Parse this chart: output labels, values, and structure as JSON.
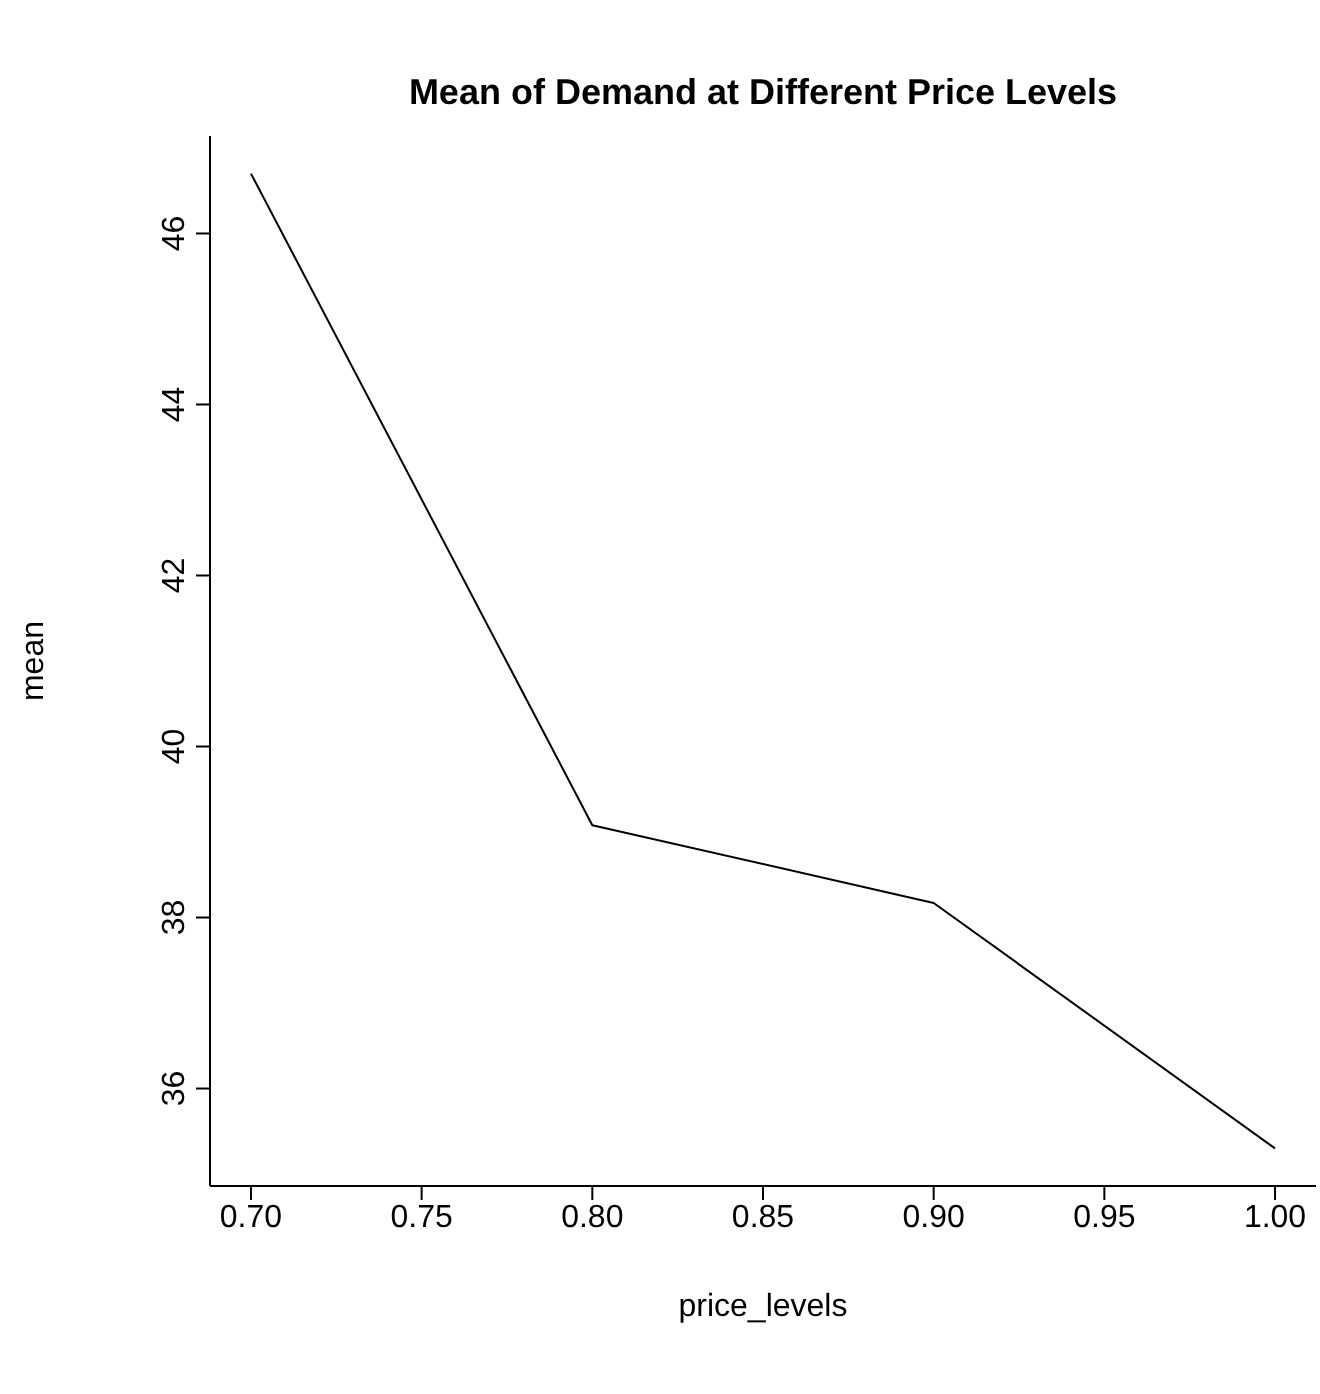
{
  "chart_data": {
    "type": "line",
    "title": "Mean of Demand at Different Price Levels",
    "xlabel": "price_levels",
    "ylabel": "mean",
    "x": [
      0.7,
      0.8,
      0.9,
      1.0
    ],
    "series": [
      {
        "color": "#000000",
        "values": [
          46.7,
          39.08,
          38.17,
          35.3
        ]
      }
    ],
    "xlim": [
      0.688,
      1.012
    ],
    "ylim": [
      34.86,
      47.14
    ],
    "xticks": [
      {
        "value": 0.7,
        "label": "0.70"
      },
      {
        "value": 0.75,
        "label": "0.75"
      },
      {
        "value": 0.8,
        "label": "0.80"
      },
      {
        "value": 0.85,
        "label": "0.85"
      },
      {
        "value": 0.9,
        "label": "0.90"
      },
      {
        "value": 0.95,
        "label": "0.95"
      },
      {
        "value": 1.0,
        "label": "1.00"
      }
    ],
    "yticks": [
      36,
      38,
      40,
      42,
      44,
      46
    ],
    "grid": false,
    "legend": false,
    "marker": "none",
    "line_style": "solid"
  }
}
